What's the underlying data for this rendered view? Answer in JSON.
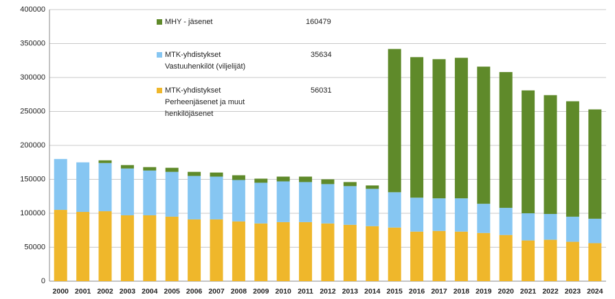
{
  "chart_data": {
    "type": "stacked_bar",
    "categories": [
      "2000",
      "2001",
      "2002",
      "2003",
      "2004",
      "2005",
      "2006",
      "2007",
      "2008",
      "2009",
      "2010",
      "2011",
      "2012",
      "2013",
      "2014",
      "2015",
      "2016",
      "2017",
      "2018",
      "2019",
      "2020",
      "2021",
      "2022",
      "2023",
      "2024"
    ],
    "series": [
      {
        "name": "MHY - jäsenet",
        "color": "#5f8a2a",
        "values": [
          0,
          0,
          4000,
          5000,
          5000,
          6000,
          6000,
          6000,
          7000,
          6000,
          7000,
          8000,
          7000,
          6000,
          5000,
          211000,
          207000,
          205000,
          207000,
          202000,
          200000,
          181000,
          175000,
          170000,
          161000
        ]
      },
      {
        "name": "MTK-yhdistykset\nVastuuhenkilöt (viljelijät)",
        "color": "#86c6f2",
        "values": [
          75000,
          73000,
          71000,
          69000,
          66000,
          66000,
          64000,
          63000,
          61000,
          60000,
          60000,
          59000,
          58000,
          57000,
          55000,
          52000,
          50000,
          48000,
          49000,
          43000,
          40000,
          40000,
          38000,
          37000,
          36000
        ]
      },
      {
        "name": "MTK-yhdistykset\nPerheenjäsenet ja muut\nhenkilöjäsenet",
        "color": "#efb72b",
        "values": [
          105000,
          102000,
          103000,
          97000,
          97000,
          95000,
          91000,
          91000,
          88000,
          85000,
          87000,
          87000,
          85000,
          83000,
          81000,
          79000,
          73000,
          74000,
          73000,
          71000,
          68000,
          60000,
          61000,
          58000,
          56000
        ]
      }
    ],
    "annotations": [
      160479,
      35634,
      56031
    ],
    "ylim": [
      0,
      400000
    ],
    "yticks": [
      0,
      50000,
      100000,
      150000,
      200000,
      250000,
      300000,
      350000,
      400000
    ],
    "grid": true
  }
}
